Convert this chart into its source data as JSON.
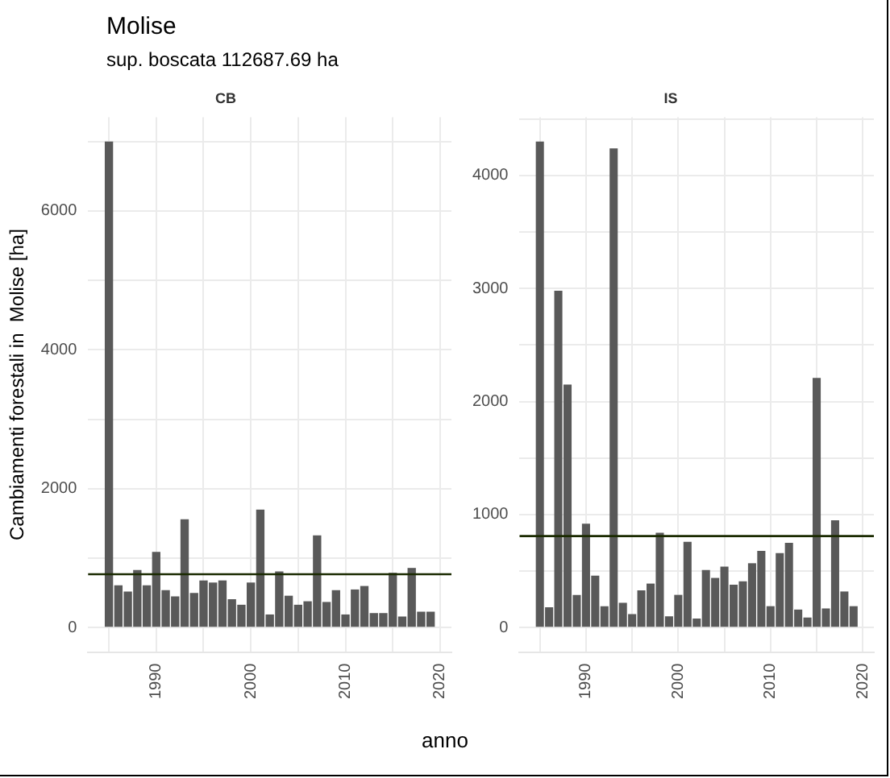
{
  "chart_data": [
    {
      "type": "other",
      "title": "Molise",
      "subtitle": "sup. boscata 112687.69 ha"
    },
    {
      "type": "bar",
      "title": "CB",
      "ylabel": "Cambiamenti forestali in  Molise [ha]",
      "color": "#595959",
      "grid": true,
      "x": [
        1985,
        1986,
        1987,
        1988,
        1989,
        1990,
        1991,
        1992,
        1993,
        1994,
        1995,
        1996,
        1997,
        1998,
        1999,
        2000,
        2001,
        2002,
        2003,
        2004,
        2005,
        2006,
        2007,
        2008,
        2009,
        2010,
        2011,
        2012,
        2013,
        2014,
        2015,
        2016,
        2017,
        2018,
        2019
      ],
      "values": [
        7000,
        610,
        520,
        830,
        610,
        1090,
        540,
        450,
        1560,
        500,
        680,
        650,
        680,
        410,
        330,
        650,
        1700,
        190,
        810,
        460,
        330,
        380,
        1330,
        370,
        540,
        190,
        550,
        600,
        210,
        210,
        790,
        160,
        860,
        230,
        230
      ],
      "xlim": [
        1982.8,
        2021.2
      ],
      "xticks": [
        {
          "value": 1985,
          "label": null
        },
        1990,
        {
          "value": 1995,
          "label": null
        },
        2000,
        {
          "value": 2005,
          "label": null
        },
        2010,
        {
          "value": 2015,
          "label": null
        },
        2020
      ],
      "ylim": [
        -350,
        7350
      ],
      "yticks": [
        0,
        {
          "value": 1000,
          "label": null
        },
        2000,
        {
          "value": 3000,
          "label": null
        },
        4000,
        {
          "value": 5000,
          "label": null
        },
        6000,
        {
          "value": 7000,
          "label": null
        }
      ],
      "ref_lines": [
        {
          "axis": "y",
          "value": 770,
          "color": "#1a2a00"
        }
      ]
    },
    {
      "type": "bar",
      "title": "IS",
      "xlabel": "anno",
      "color": "#595959",
      "grid": true,
      "x": [
        1985,
        1986,
        1987,
        1988,
        1989,
        1990,
        1991,
        1992,
        1993,
        1994,
        1995,
        1996,
        1997,
        1998,
        1999,
        2000,
        2001,
        2002,
        2003,
        2004,
        2005,
        2006,
        2007,
        2008,
        2009,
        2010,
        2011,
        2012,
        2013,
        2014,
        2015,
        2016,
        2017,
        2018,
        2019
      ],
      "values": [
        4300,
        180,
        2980,
        2150,
        290,
        920,
        460,
        190,
        4240,
        220,
        120,
        330,
        390,
        840,
        100,
        290,
        760,
        80,
        510,
        440,
        540,
        380,
        410,
        570,
        680,
        190,
        660,
        750,
        160,
        90,
        2210,
        170,
        950,
        320,
        190
      ],
      "xlim": [
        1982.8,
        2021.2
      ],
      "xticks": [
        {
          "value": 1985,
          "label": null
        },
        1990,
        {
          "value": 1995,
          "label": null
        },
        2000,
        {
          "value": 2005,
          "label": null
        },
        2010,
        {
          "value": 2015,
          "label": null
        },
        2020
      ],
      "ylim": [
        -215,
        4515
      ],
      "yticks": [
        0,
        {
          "value": 500,
          "label": null
        },
        1000,
        {
          "value": 1500,
          "label": null
        },
        2000,
        {
          "value": 2500,
          "label": null
        },
        3000,
        {
          "value": 3500,
          "label": null
        },
        4000,
        {
          "value": 4500,
          "label": null
        }
      ],
      "ref_lines": [
        {
          "axis": "y",
          "value": 810,
          "color": "#1a2a00"
        }
      ]
    }
  ]
}
